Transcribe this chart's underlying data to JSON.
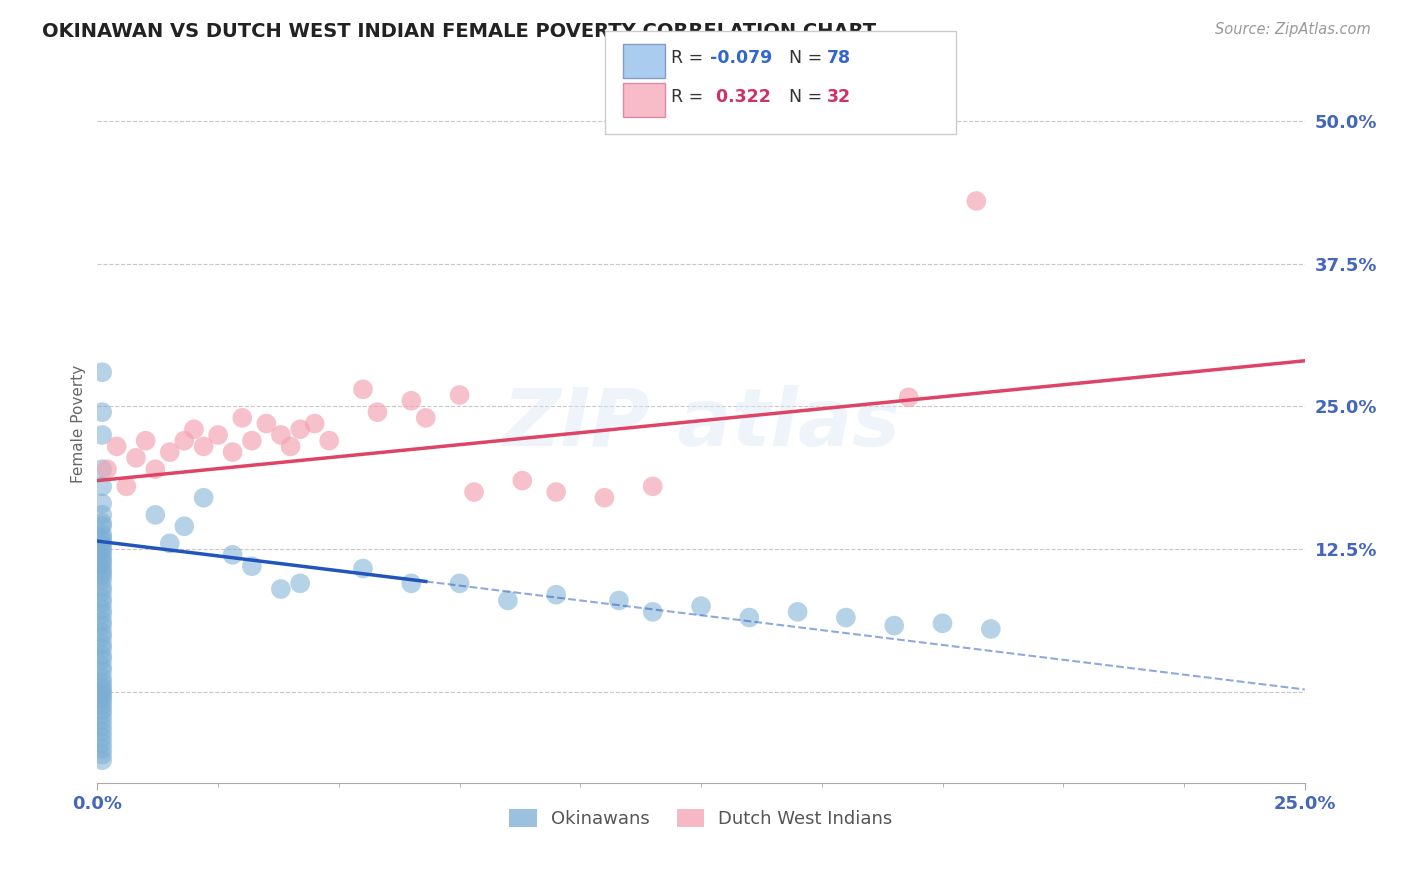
{
  "title": "OKINAWAN VS DUTCH WEST INDIAN FEMALE POVERTY CORRELATION CHART",
  "source": "Source: ZipAtlas.com",
  "ylabel": "Female Poverty",
  "xlim": [
    0.0,
    0.25
  ],
  "ylim": [
    -0.08,
    0.55
  ],
  "y_ticks": [
    0.0,
    0.125,
    0.25,
    0.375,
    0.5
  ],
  "y_tick_labels": [
    "",
    "12.5%",
    "25.0%",
    "37.5%",
    "50.0%"
  ],
  "x_ticks": [
    0.0,
    0.25
  ],
  "x_tick_labels": [
    "0.0%",
    "25.0%"
  ],
  "okinawan_color": "#7aadd4",
  "dutch_color": "#f4a0b0",
  "okinawan_line_color": "#2255bb",
  "dutch_line_color": "#dd4466",
  "background_color": "#ffffff",
  "grid_color": "#c8c8c8",
  "R_okinawan": -0.079,
  "N_okinawan": 78,
  "R_dutch": 0.322,
  "N_dutch": 32,
  "ok_intercept": 0.132,
  "ok_slope": -0.52,
  "du_intercept": 0.185,
  "du_slope": 0.42,
  "okinawan_points": [
    [
      0.001,
      0.28
    ],
    [
      0.001,
      0.245
    ],
    [
      0.001,
      0.225
    ],
    [
      0.001,
      0.195
    ],
    [
      0.001,
      0.18
    ],
    [
      0.001,
      0.165
    ],
    [
      0.001,
      0.155
    ],
    [
      0.001,
      0.148
    ],
    [
      0.001,
      0.145
    ],
    [
      0.001,
      0.138
    ],
    [
      0.001,
      0.135
    ],
    [
      0.001,
      0.132
    ],
    [
      0.001,
      0.128
    ],
    [
      0.001,
      0.125
    ],
    [
      0.001,
      0.122
    ],
    [
      0.001,
      0.118
    ],
    [
      0.001,
      0.115
    ],
    [
      0.001,
      0.112
    ],
    [
      0.001,
      0.108
    ],
    [
      0.001,
      0.105
    ],
    [
      0.001,
      0.102
    ],
    [
      0.001,
      0.098
    ],
    [
      0.001,
      0.092
    ],
    [
      0.001,
      0.088
    ],
    [
      0.001,
      0.082
    ],
    [
      0.001,
      0.078
    ],
    [
      0.001,
      0.072
    ],
    [
      0.001,
      0.068
    ],
    [
      0.001,
      0.062
    ],
    [
      0.001,
      0.058
    ],
    [
      0.001,
      0.052
    ],
    [
      0.001,
      0.048
    ],
    [
      0.001,
      0.042
    ],
    [
      0.001,
      0.038
    ],
    [
      0.001,
      0.032
    ],
    [
      0.001,
      0.028
    ],
    [
      0.001,
      0.022
    ],
    [
      0.001,
      0.018
    ],
    [
      0.001,
      0.012
    ],
    [
      0.001,
      0.008
    ],
    [
      0.001,
      0.004
    ],
    [
      0.001,
      0.001
    ],
    [
      0.001,
      -0.002
    ],
    [
      0.001,
      -0.005
    ],
    [
      0.001,
      -0.008
    ],
    [
      0.001,
      -0.012
    ],
    [
      0.001,
      -0.016
    ],
    [
      0.001,
      -0.02
    ],
    [
      0.001,
      -0.025
    ],
    [
      0.001,
      -0.03
    ],
    [
      0.001,
      -0.035
    ],
    [
      0.001,
      -0.04
    ],
    [
      0.001,
      -0.045
    ],
    [
      0.001,
      -0.05
    ],
    [
      0.001,
      -0.055
    ],
    [
      0.001,
      -0.06
    ],
    [
      0.012,
      0.155
    ],
    [
      0.015,
      0.13
    ],
    [
      0.018,
      0.145
    ],
    [
      0.022,
      0.17
    ],
    [
      0.028,
      0.12
    ],
    [
      0.032,
      0.11
    ],
    [
      0.038,
      0.09
    ],
    [
      0.042,
      0.095
    ],
    [
      0.055,
      0.108
    ],
    [
      0.065,
      0.095
    ],
    [
      0.075,
      0.095
    ],
    [
      0.085,
      0.08
    ],
    [
      0.095,
      0.085
    ],
    [
      0.108,
      0.08
    ],
    [
      0.115,
      0.07
    ],
    [
      0.125,
      0.075
    ],
    [
      0.135,
      0.065
    ],
    [
      0.145,
      0.07
    ],
    [
      0.155,
      0.065
    ],
    [
      0.165,
      0.058
    ],
    [
      0.175,
      0.06
    ],
    [
      0.185,
      0.055
    ]
  ],
  "dutch_points": [
    [
      0.002,
      0.195
    ],
    [
      0.004,
      0.215
    ],
    [
      0.006,
      0.18
    ],
    [
      0.008,
      0.205
    ],
    [
      0.01,
      0.22
    ],
    [
      0.012,
      0.195
    ],
    [
      0.015,
      0.21
    ],
    [
      0.018,
      0.22
    ],
    [
      0.02,
      0.23
    ],
    [
      0.022,
      0.215
    ],
    [
      0.025,
      0.225
    ],
    [
      0.028,
      0.21
    ],
    [
      0.03,
      0.24
    ],
    [
      0.032,
      0.22
    ],
    [
      0.035,
      0.235
    ],
    [
      0.038,
      0.225
    ],
    [
      0.04,
      0.215
    ],
    [
      0.042,
      0.23
    ],
    [
      0.045,
      0.235
    ],
    [
      0.048,
      0.22
    ],
    [
      0.055,
      0.265
    ],
    [
      0.058,
      0.245
    ],
    [
      0.065,
      0.255
    ],
    [
      0.068,
      0.24
    ],
    [
      0.075,
      0.26
    ],
    [
      0.078,
      0.175
    ],
    [
      0.088,
      0.185
    ],
    [
      0.095,
      0.175
    ],
    [
      0.105,
      0.17
    ],
    [
      0.115,
      0.18
    ],
    [
      0.168,
      0.258
    ],
    [
      0.182,
      0.43
    ]
  ]
}
